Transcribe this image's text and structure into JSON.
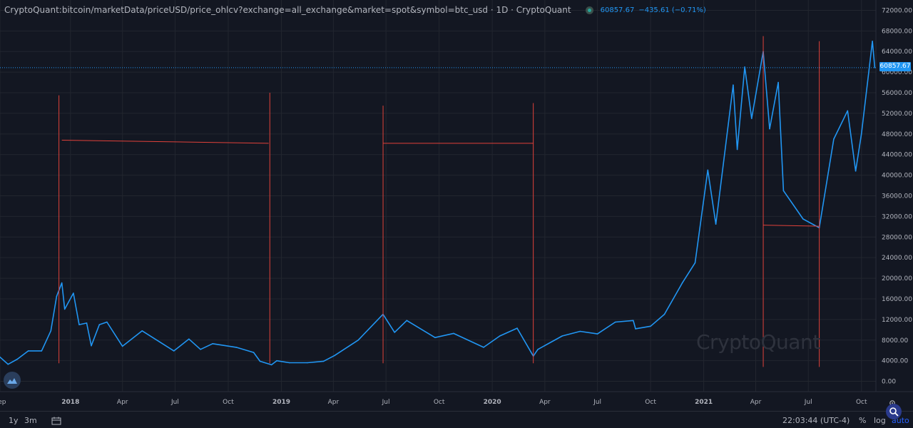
{
  "header": {
    "title": "CryptoQuant:bitcoin/marketData/priceUSD/price_ohlcv?exchange=all_exchange&market=spot&symbol=btc_usd · 1D · CryptoQuant",
    "last_value": "60857.67",
    "change": "−435.61 (−0.71%)"
  },
  "watermark": "CryptoQuant",
  "colors": {
    "background": "#131722",
    "series": "#2196f3",
    "annotation": "#e0413a",
    "grid": "#22262f",
    "text": "#b2b5be"
  },
  "icons": {
    "logo": "cryptoquant-logo-icon",
    "settings": "gear-icon",
    "search": "search-icon",
    "compare": "compare-dates-icon"
  },
  "bottom_bar": {
    "timeframes": [
      "1y",
      "3m"
    ],
    "clock": "22:03:44 (UTC-4)",
    "percent": "%",
    "log": "log",
    "auto": "auto"
  },
  "chart_data": {
    "type": "line",
    "title": "",
    "xlabel": "",
    "ylabel": "",
    "ylim": [
      -2000,
      74000
    ],
    "x_tick_labels": [
      "Sep",
      "2018",
      "Apr",
      "Jul",
      "Oct",
      "2019",
      "Apr",
      "Jul",
      "Oct",
      "2020",
      "Apr",
      "Jul",
      "Oct",
      "2021",
      "Apr",
      "Jul",
      "Oct"
    ],
    "y_tick_labels": [
      "0.00",
      "4000.00",
      "8000.00",
      "12000.00",
      "16000.00",
      "20000.00",
      "24000.00",
      "28000.00",
      "32000.00",
      "36000.00",
      "40000.00",
      "44000.00",
      "48000.00",
      "52000.00",
      "56000.00",
      "60000.00",
      "64000.00",
      "68000.00",
      "72000.00"
    ],
    "current_price": 60857.67,
    "current_price_label": "60857.67",
    "grid": true,
    "series": [
      {
        "values": [
          [
            "2017-09-01",
            4700
          ],
          [
            "2017-09-15",
            3300
          ],
          [
            "2017-10-01",
            4300
          ],
          [
            "2017-10-20",
            5900
          ],
          [
            "2017-11-12",
            5900
          ],
          [
            "2017-11-28",
            9800
          ],
          [
            "2017-12-08",
            16500
          ],
          [
            "2017-12-17",
            19100
          ],
          [
            "2017-12-22",
            14000
          ],
          [
            "2018-01-06",
            17100
          ],
          [
            "2018-01-16",
            11000
          ],
          [
            "2018-01-29",
            11300
          ],
          [
            "2018-02-06",
            6900
          ],
          [
            "2018-02-20",
            11000
          ],
          [
            "2018-03-05",
            11500
          ],
          [
            "2018-04-01",
            6800
          ],
          [
            "2018-05-05",
            9800
          ],
          [
            "2018-06-29",
            5900
          ],
          [
            "2018-07-25",
            8200
          ],
          [
            "2018-08-14",
            6200
          ],
          [
            "2018-09-04",
            7300
          ],
          [
            "2018-10-15",
            6600
          ],
          [
            "2018-11-14",
            5600
          ],
          [
            "2018-11-25",
            3900
          ],
          [
            "2018-12-15",
            3200
          ],
          [
            "2018-12-24",
            4000
          ],
          [
            "2019-01-15",
            3600
          ],
          [
            "2019-02-15",
            3600
          ],
          [
            "2019-03-15",
            3900
          ],
          [
            "2019-04-03",
            5000
          ],
          [
            "2019-05-14",
            8000
          ],
          [
            "2019-06-26",
            13000
          ],
          [
            "2019-07-16",
            9500
          ],
          [
            "2019-08-06",
            11800
          ],
          [
            "2019-09-24",
            8500
          ],
          [
            "2019-10-26",
            9300
          ],
          [
            "2019-12-17",
            6600
          ],
          [
            "2020-01-14",
            8800
          ],
          [
            "2020-02-13",
            10300
          ],
          [
            "2020-03-12",
            4900
          ],
          [
            "2020-03-20",
            6200
          ],
          [
            "2020-05-01",
            8800
          ],
          [
            "2020-06-01",
            9700
          ],
          [
            "2020-07-01",
            9200
          ],
          [
            "2020-08-01",
            11500
          ],
          [
            "2020-09-01",
            11800
          ],
          [
            "2020-09-05",
            10200
          ],
          [
            "2020-10-01",
            10700
          ],
          [
            "2020-10-25",
            13000
          ],
          [
            "2020-11-25",
            19100
          ],
          [
            "2020-12-17",
            23000
          ],
          [
            "2021-01-08",
            41000
          ],
          [
            "2021-01-22",
            30500
          ],
          [
            "2021-02-21",
            57500
          ],
          [
            "2021-02-28",
            45000
          ],
          [
            "2021-03-13",
            61000
          ],
          [
            "2021-03-25",
            51000
          ],
          [
            "2021-04-14",
            64000
          ],
          [
            "2021-04-25",
            49000
          ],
          [
            "2021-05-10",
            58000
          ],
          [
            "2021-05-19",
            37000
          ],
          [
            "2021-06-22",
            31500
          ],
          [
            "2021-07-20",
            29800
          ],
          [
            "2021-08-14",
            47000
          ],
          [
            "2021-09-07",
            52500
          ],
          [
            "2021-09-21",
            40800
          ],
          [
            "2021-10-01",
            48000
          ],
          [
            "2021-10-20",
            66000
          ],
          [
            "2021-10-24",
            60857
          ]
        ]
      }
    ],
    "annotations": {
      "horizontal_lines": [
        {
          "x": [
            "2017-12-17",
            "2018-12-10"
          ],
          "y": [
            46800,
            46200
          ]
        },
        {
          "x": [
            "2019-06-26",
            "2020-03-12"
          ],
          "y": [
            46200,
            46200
          ]
        },
        {
          "x": [
            "2021-04-14",
            "2021-07-20"
          ],
          "y": [
            30300,
            30100
          ]
        }
      ],
      "vertical_lines": [
        {
          "x": "2017-12-12",
          "y": [
            3500,
            55500
          ]
        },
        {
          "x": "2018-12-12",
          "y": [
            3500,
            56000
          ]
        },
        {
          "x": "2019-06-26",
          "y": [
            3500,
            53500
          ]
        },
        {
          "x": "2020-03-12",
          "y": [
            3500,
            54000
          ]
        },
        {
          "x": "2021-04-14",
          "y": [
            2800,
            67000
          ]
        },
        {
          "x": "2021-07-20",
          "y": [
            2800,
            66000
          ]
        }
      ]
    }
  }
}
